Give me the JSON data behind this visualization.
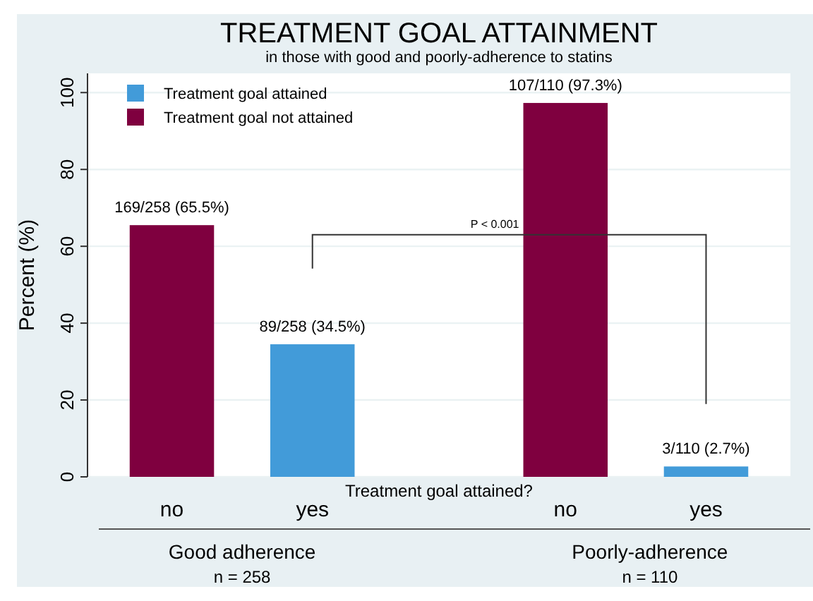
{
  "chart_data": {
    "type": "bar",
    "title": "TREATMENT GOAL ATTAINMENT",
    "subtitle": "in those with good and poorly-adherence to statins",
    "xlabel": "Treatment goal attained?",
    "ylabel": "Percent (%)",
    "categories": [
      "no",
      "yes",
      "no",
      "yes"
    ],
    "series": [
      {
        "name": "Treatment goal attained",
        "color": "#429bd9",
        "values": [
          null,
          34.5,
          null,
          2.7
        ],
        "value_labels": [
          null,
          "89/258 (34.5%)",
          null,
          "3/110 (2.7%)"
        ]
      },
      {
        "name": "Treatment goal not attained",
        "color": "#7f003f",
        "values": [
          65.5,
          null,
          97.3,
          null
        ],
        "value_labels": [
          "169/258 (65.5%)",
          null,
          "107/110 (97.3%)",
          null
        ]
      }
    ],
    "ylim": [
      0,
      105
    ],
    "yticks": [
      0,
      20,
      40,
      60,
      80,
      100
    ],
    "grid": "y",
    "legend": "top left",
    "annotations": [
      "P < 0.001",
      "Good adherence",
      "n = 258",
      "Poorly-adherence",
      "n = 110"
    ]
  }
}
